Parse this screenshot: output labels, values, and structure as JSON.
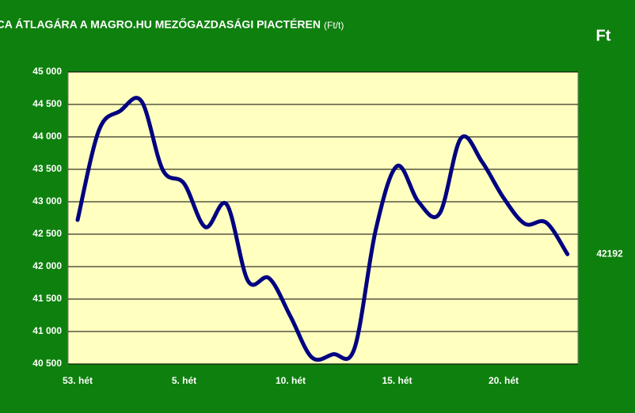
{
  "chart_data": {
    "type": "line",
    "title": "A KUKORICA ÁTLAGÁRA A MAGRO.HU MEZŐGAZDASÁGI PIACTÉREN",
    "title_unit": "(Ft/t)",
    "unit_badge": "Ft",
    "categories": [
      "53. hét",
      null,
      null,
      null,
      null,
      "5. hét",
      null,
      null,
      null,
      null,
      "10. hét",
      null,
      null,
      null,
      null,
      "15. hét",
      null,
      null,
      null,
      null,
      "20. hét",
      null,
      null,
      null
    ],
    "values": [
      42720,
      44100,
      44400,
      44550,
      43490,
      43280,
      42610,
      42960,
      41780,
      41820,
      41230,
      40600,
      40650,
      40740,
      42570,
      43550,
      43000,
      42820,
      43980,
      43610,
      43060,
      42660,
      42680,
      42192
    ],
    "color": "#000080",
    "ylim": [
      40500,
      45000
    ],
    "yticks": [
      {
        "value": 40500,
        "label": "40 500"
      },
      {
        "value": 41000,
        "label": "41 000"
      },
      {
        "value": 41500,
        "label": "41 500"
      },
      {
        "value": 42000,
        "label": "42 000"
      },
      {
        "value": 42500,
        "label": "42 500"
      },
      {
        "value": 43000,
        "label": "43 000"
      },
      {
        "value": 43500,
        "label": "43 500"
      },
      {
        "value": 44000,
        "label": "44 000"
      },
      {
        "value": 44500,
        "label": "44 500"
      },
      {
        "value": 45000,
        "label": "45 000"
      }
    ],
    "grid": true
  }
}
